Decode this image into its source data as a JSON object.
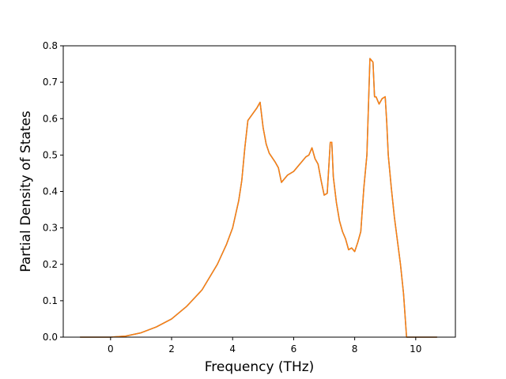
{
  "chart_data": {
    "type": "line",
    "title": "",
    "xlabel": "Frequency (THz)",
    "ylabel": "Partial Density of States",
    "xlim": [
      -1.55,
      11.3
    ],
    "ylim": [
      0,
      0.8
    ],
    "xticks": [
      0,
      2,
      4,
      6,
      8,
      10
    ],
    "yticks": [
      0.0,
      0.1,
      0.2,
      0.3,
      0.4,
      0.5,
      0.6,
      0.7,
      0.8
    ],
    "xtick_labels": [
      "0",
      "2",
      "4",
      "6",
      "8",
      "10"
    ],
    "ytick_labels": [
      "0.0",
      "0.1",
      "0.2",
      "0.3",
      "0.4",
      "0.5",
      "0.6",
      "0.7",
      "0.8"
    ],
    "grid": false,
    "legend": "none",
    "series": [
      {
        "color": "#1f77b4",
        "x": [
          -1.0,
          0.0,
          0.5,
          1.0,
          1.5,
          2.0,
          2.5,
          3.0,
          3.5,
          3.8,
          4.0,
          4.2,
          4.3,
          4.4,
          4.5,
          4.8,
          4.9,
          5.0,
          5.1,
          5.2,
          5.4,
          5.5,
          5.6,
          5.8,
          6.0,
          6.2,
          6.4,
          6.5,
          6.6,
          6.7,
          6.8,
          6.9,
          7.0,
          7.1,
          7.2,
          7.25,
          7.3,
          7.4,
          7.5,
          7.6,
          7.7,
          7.8,
          7.9,
          8.0,
          8.1,
          8.2,
          8.3,
          8.4,
          8.5,
          8.6,
          8.65,
          8.7,
          8.8,
          8.9,
          9.0,
          9.05,
          9.1,
          9.2,
          9.3,
          9.5,
          9.6,
          9.7,
          9.8,
          10.0,
          10.7
        ],
        "y": [
          0.0,
          0.0,
          0.003,
          0.012,
          0.028,
          0.05,
          0.085,
          0.13,
          0.2,
          0.255,
          0.3,
          0.375,
          0.43,
          0.52,
          0.595,
          0.63,
          0.645,
          0.575,
          0.53,
          0.505,
          0.48,
          0.465,
          0.425,
          0.445,
          0.455,
          0.475,
          0.495,
          0.5,
          0.52,
          0.49,
          0.475,
          0.43,
          0.39,
          0.395,
          0.535,
          0.535,
          0.44,
          0.37,
          0.32,
          0.29,
          0.27,
          0.24,
          0.245,
          0.235,
          0.26,
          0.29,
          0.41,
          0.5,
          0.765,
          0.755,
          0.66,
          0.66,
          0.64,
          0.655,
          0.66,
          0.59,
          0.5,
          0.41,
          0.33,
          0.2,
          0.12,
          0.0,
          0.0,
          0.0,
          0.0
        ]
      },
      {
        "color": "#ff7f0e",
        "x": [
          -1.0,
          0.0,
          0.5,
          1.0,
          1.5,
          2.0,
          2.5,
          3.0,
          3.5,
          3.8,
          4.0,
          4.2,
          4.3,
          4.4,
          4.5,
          4.8,
          4.9,
          5.0,
          5.1,
          5.2,
          5.4,
          5.5,
          5.6,
          5.8,
          6.0,
          6.2,
          6.4,
          6.5,
          6.6,
          6.7,
          6.8,
          6.9,
          7.0,
          7.1,
          7.2,
          7.25,
          7.3,
          7.4,
          7.5,
          7.6,
          7.7,
          7.8,
          7.9,
          8.0,
          8.1,
          8.2,
          8.3,
          8.4,
          8.5,
          8.6,
          8.65,
          8.7,
          8.8,
          8.9,
          9.0,
          9.05,
          9.1,
          9.2,
          9.3,
          9.5,
          9.6,
          9.7,
          9.8,
          10.0,
          10.7
        ],
        "y": [
          0.0,
          0.0,
          0.003,
          0.012,
          0.028,
          0.05,
          0.085,
          0.13,
          0.2,
          0.255,
          0.3,
          0.375,
          0.43,
          0.52,
          0.595,
          0.63,
          0.645,
          0.575,
          0.53,
          0.505,
          0.48,
          0.465,
          0.425,
          0.445,
          0.455,
          0.475,
          0.495,
          0.5,
          0.52,
          0.49,
          0.475,
          0.43,
          0.39,
          0.395,
          0.535,
          0.535,
          0.44,
          0.37,
          0.32,
          0.29,
          0.27,
          0.24,
          0.245,
          0.235,
          0.26,
          0.29,
          0.41,
          0.5,
          0.765,
          0.755,
          0.66,
          0.66,
          0.64,
          0.655,
          0.66,
          0.59,
          0.5,
          0.41,
          0.33,
          0.2,
          0.12,
          0.0,
          0.0,
          0.0,
          0.0
        ]
      }
    ]
  }
}
